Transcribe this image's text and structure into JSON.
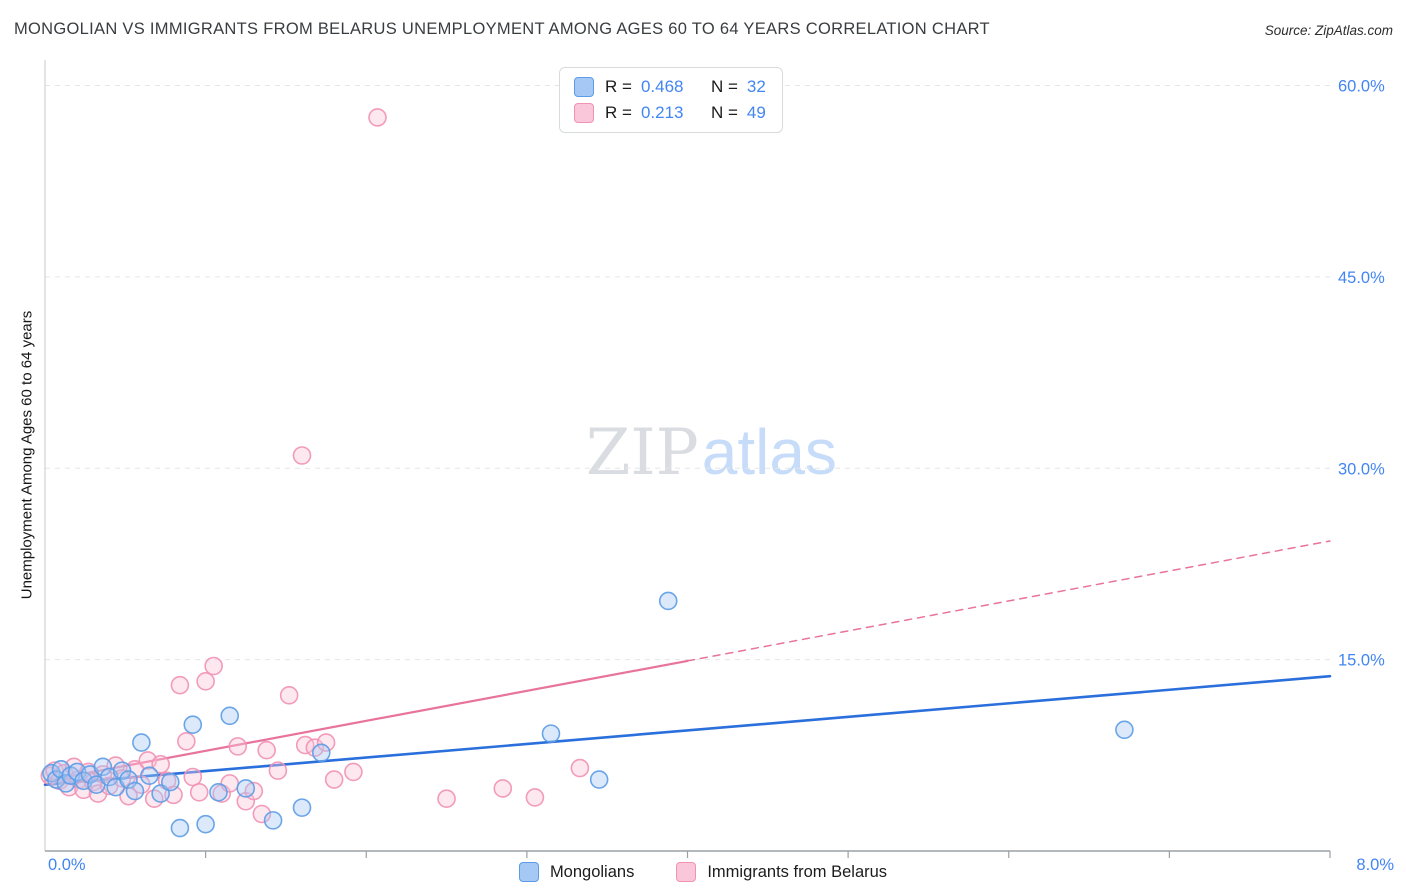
{
  "header": {
    "title": "MONGOLIAN VS IMMIGRANTS FROM BELARUS UNEMPLOYMENT AMONG AGES 60 TO 64 YEARS CORRELATION CHART",
    "source": "Source: ZipAtlas.com"
  },
  "watermark": {
    "zip": "ZIP",
    "atlas": "atlas"
  },
  "stats_legend": {
    "rows": [
      {
        "r_label": "R =",
        "r_value": "0.468",
        "n_label": "N =",
        "n_value": "32"
      },
      {
        "r_label": "R =",
        "r_value": "0.213",
        "n_label": "N =",
        "n_value": "49"
      }
    ]
  },
  "series_legend": {
    "items": [
      {
        "label": "Mongolians"
      },
      {
        "label": "Immigrants from Belarus"
      }
    ]
  },
  "colors": {
    "axis_tick_label": "#4285f4",
    "grid": "#e3e5e8",
    "axis_line": "#9aa0a6",
    "left_axis_line": "#d5d8dc",
    "blue_trend": "#2a6fdb",
    "pink_trend": "#e8739c"
  },
  "chart_data": {
    "type": "scatter",
    "title": "MONGOLIAN VS IMMIGRANTS FROM BELARUS UNEMPLOYMENT AMONG AGES 60 TO 64 YEARS CORRELATION CHART",
    "xlabel": "",
    "ylabel": "Unemployment Among Ages 60 to 64 years",
    "xlim": [
      0,
      8
    ],
    "ylim": [
      0,
      62
    ],
    "grid": "horizontal-dashed",
    "legend_position": "top-center",
    "y_gridlines": [
      15,
      30,
      45,
      60
    ],
    "y_ticks": [
      {
        "value": 60,
        "label": "60.0%"
      },
      {
        "value": 45,
        "label": "45.0%"
      },
      {
        "value": 30,
        "label": "30.0%"
      },
      {
        "value": 15,
        "label": "15.0%"
      }
    ],
    "x_ticks": [
      {
        "value": 0,
        "label": "0.0%"
      },
      {
        "value": 8,
        "label": "8.0%"
      }
    ],
    "series": [
      {
        "name": "Mongolians",
        "R": 0.468,
        "N": 32,
        "color_stroke": "#5c9ce6",
        "color_fill": "#a6c8f5",
        "points": [
          [
            0.04,
            6.1
          ],
          [
            0.07,
            5.6
          ],
          [
            0.1,
            6.4
          ],
          [
            0.13,
            5.3
          ],
          [
            0.16,
            5.9
          ],
          [
            0.2,
            6.2
          ],
          [
            0.24,
            5.5
          ],
          [
            0.28,
            6.0
          ],
          [
            0.32,
            5.2
          ],
          [
            0.36,
            6.6
          ],
          [
            0.4,
            5.8
          ],
          [
            0.44,
            5.0
          ],
          [
            0.48,
            6.3
          ],
          [
            0.52,
            5.6
          ],
          [
            0.56,
            4.7
          ],
          [
            0.6,
            8.5
          ],
          [
            0.65,
            5.9
          ],
          [
            0.72,
            4.5
          ],
          [
            0.78,
            5.4
          ],
          [
            0.84,
            1.8
          ],
          [
            0.92,
            9.9
          ],
          [
            1.0,
            2.1
          ],
          [
            1.08,
            4.6
          ],
          [
            1.15,
            10.6
          ],
          [
            1.25,
            4.9
          ],
          [
            1.42,
            2.4
          ],
          [
            1.6,
            3.4
          ],
          [
            1.72,
            7.7
          ],
          [
            3.15,
            9.2
          ],
          [
            3.45,
            5.6
          ],
          [
            3.88,
            19.6
          ],
          [
            6.72,
            9.5
          ]
        ]
      },
      {
        "name": "Immigrants from Belarus",
        "R": 0.213,
        "N": 49,
        "color_stroke": "#f191b4",
        "color_fill": "#f9c6da",
        "points": [
          [
            0.03,
            5.9
          ],
          [
            0.06,
            6.3
          ],
          [
            0.09,
            5.5
          ],
          [
            0.12,
            6.1
          ],
          [
            0.15,
            5.0
          ],
          [
            0.18,
            6.6
          ],
          [
            0.21,
            5.6
          ],
          [
            0.24,
            4.8
          ],
          [
            0.27,
            6.2
          ],
          [
            0.3,
            5.4
          ],
          [
            0.33,
            4.5
          ],
          [
            0.36,
            6.0
          ],
          [
            0.4,
            5.1
          ],
          [
            0.44,
            6.7
          ],
          [
            0.48,
            5.7
          ],
          [
            0.52,
            4.3
          ],
          [
            0.56,
            6.4
          ],
          [
            0.6,
            5.2
          ],
          [
            0.64,
            7.1
          ],
          [
            0.68,
            4.1
          ],
          [
            0.72,
            6.8
          ],
          [
            0.76,
            5.5
          ],
          [
            0.8,
            4.4
          ],
          [
            0.84,
            13.0
          ],
          [
            0.88,
            8.6
          ],
          [
            0.92,
            5.8
          ],
          [
            0.96,
            4.6
          ],
          [
            1.0,
            13.3
          ],
          [
            1.05,
            14.5
          ],
          [
            1.1,
            4.5
          ],
          [
            1.15,
            5.3
          ],
          [
            1.2,
            8.2
          ],
          [
            1.25,
            3.9
          ],
          [
            1.3,
            4.7
          ],
          [
            1.35,
            2.9
          ],
          [
            1.38,
            7.9
          ],
          [
            1.45,
            6.3
          ],
          [
            1.52,
            12.2
          ],
          [
            1.6,
            31.0
          ],
          [
            1.62,
            8.3
          ],
          [
            1.68,
            8.1
          ],
          [
            1.75,
            8.5
          ],
          [
            1.8,
            5.6
          ],
          [
            1.92,
            6.2
          ],
          [
            2.07,
            57.5
          ],
          [
            2.5,
            4.1
          ],
          [
            2.85,
            4.9
          ],
          [
            3.05,
            4.2
          ],
          [
            3.33,
            6.5
          ]
        ]
      }
    ],
    "trend_lines": [
      {
        "series": "Mongolians",
        "color": "#2a6fdb",
        "style": "solid",
        "width": 2.6,
        "x1": 0,
        "y1": 5.2,
        "x2": 8,
        "y2": 13.7
      },
      {
        "series": "Immigrants from Belarus",
        "color": "#e8739c",
        "style": "solid",
        "width": 2.2,
        "x1": 0,
        "y1": 5.5,
        "x2": 4.0,
        "y2": 14.9
      },
      {
        "series": "Immigrants from Belarus",
        "color": "#e8739c",
        "style": "dashed",
        "width": 1.5,
        "x1": 4.0,
        "y1": 14.9,
        "x2": 8,
        "y2": 24.3
      }
    ]
  }
}
